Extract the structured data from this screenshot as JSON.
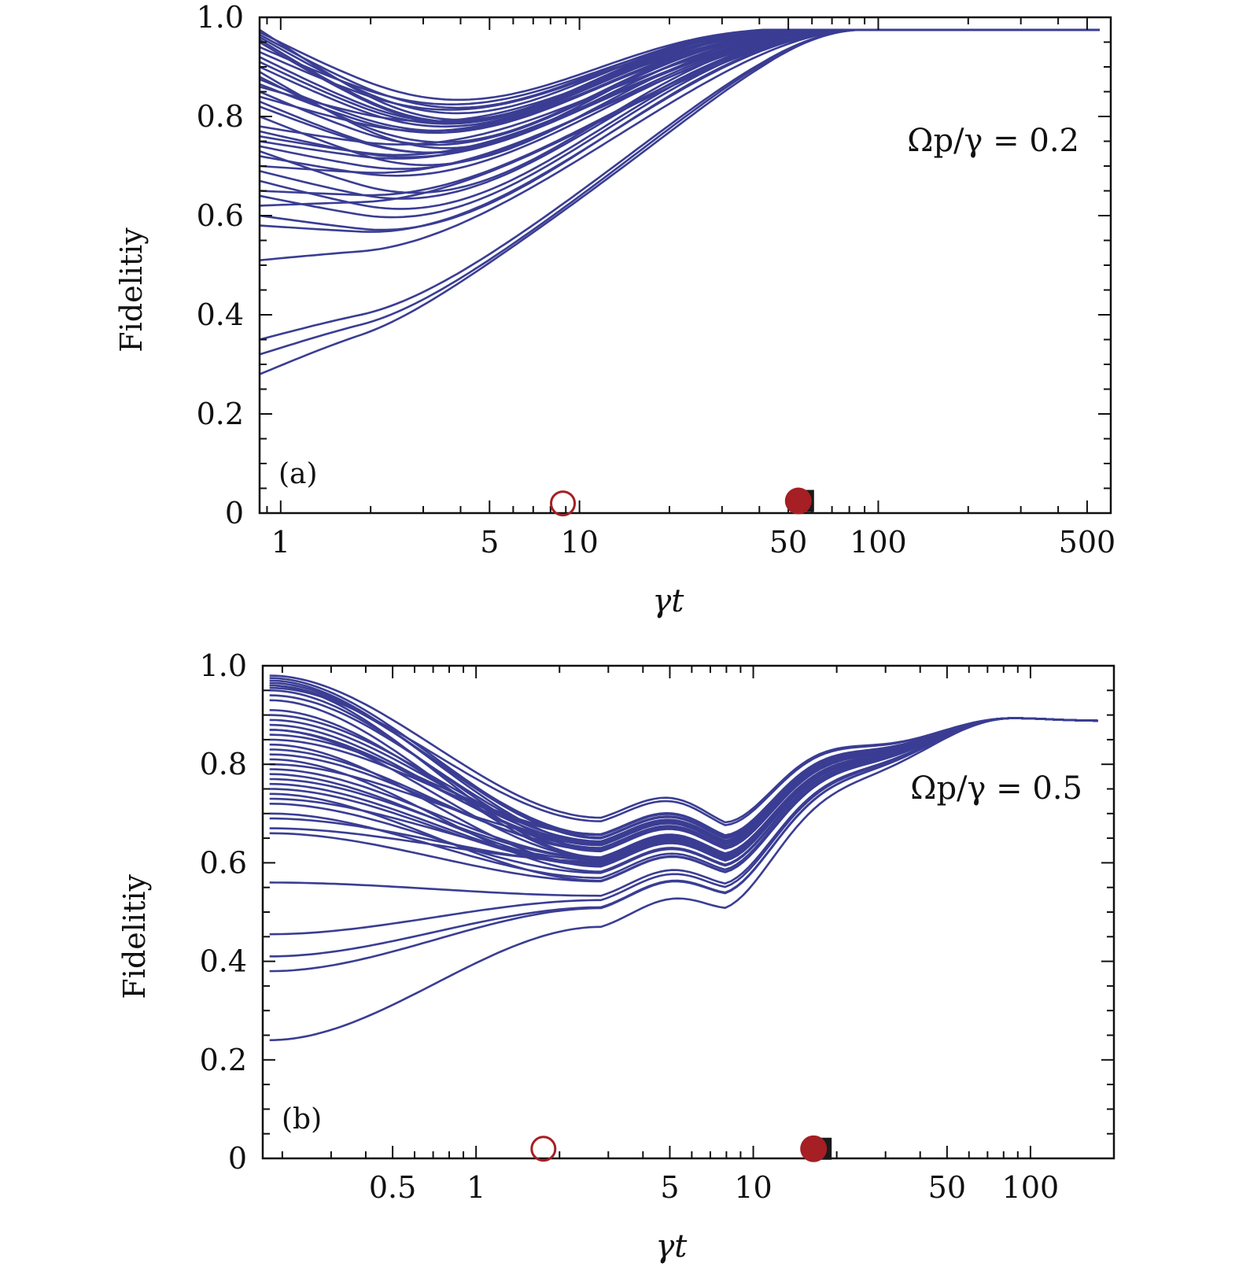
{
  "colors": {
    "curve": "#3a3d93",
    "marker": "#a51f24",
    "marker_square": "#1a1a1a",
    "axis": "#111111"
  },
  "chart_data": [
    {
      "type": "line",
      "panel_label": "(a)",
      "annotation": "Ωp/γ = 0.2",
      "xlabel": "γt",
      "ylabel": "Fidelitiy",
      "xscale": "log",
      "xlim": [
        0.85,
        600
      ],
      "ylim": [
        0,
        1.0
      ],
      "yticks": [
        0,
        0.2,
        0.4,
        0.6,
        0.8,
        1.0
      ],
      "ytick_labels": [
        "0",
        "0.2",
        "0.4",
        "0.6",
        "0.8",
        "1.0"
      ],
      "xticks": [
        1,
        5,
        10,
        50,
        100,
        500
      ],
      "xtick_labels": [
        "1",
        "5",
        "10",
        "50",
        "100",
        "500"
      ],
      "n_curves": 40,
      "x_start": 0.85,
      "x_end": 550,
      "final_value": 0.975,
      "initial_values": [
        0.975,
        0.97,
        0.965,
        0.96,
        0.95,
        0.94,
        0.93,
        0.92,
        0.91,
        0.9,
        0.89,
        0.875,
        0.865,
        0.85,
        0.84,
        0.83,
        0.82,
        0.8,
        0.78,
        0.77,
        0.76,
        0.75,
        0.73,
        0.72,
        0.7,
        0.69,
        0.65,
        0.64,
        0.62,
        0.6,
        0.58,
        0.51,
        0.35,
        0.32,
        0.28,
        0.67,
        0.74,
        0.86,
        0.88,
        0.955
      ],
      "markers": [
        {
          "kind": "open-circle",
          "x": 8.8,
          "y": 0.01
        },
        {
          "kind": "filled-square",
          "x": 56,
          "y": 0.015
        },
        {
          "kind": "filled-circle",
          "x": 54,
          "y": 0.015
        }
      ]
    },
    {
      "type": "line",
      "panel_label": "(b)",
      "annotation": "Ωp/γ = 0.5",
      "xlabel": "γt",
      "ylabel": "Fidelitiy",
      "xscale": "log",
      "xlim": [
        0.17,
        200
      ],
      "ylim": [
        0,
        1.0
      ],
      "yticks": [
        0,
        0.2,
        0.4,
        0.6,
        0.8,
        1.0
      ],
      "ytick_labels": [
        "0",
        "0.2",
        "0.4",
        "0.6",
        "0.8",
        "1.0"
      ],
      "xticks": [
        0.5,
        1,
        5,
        10,
        50,
        100
      ],
      "xtick_labels": [
        "0.5",
        "1",
        "5",
        "10",
        "50",
        "100"
      ],
      "n_curves": 40,
      "x_start": 0.18,
      "x_end": 175,
      "final_value": 0.89,
      "initial_values": [
        0.98,
        0.975,
        0.97,
        0.965,
        0.96,
        0.955,
        0.95,
        0.91,
        0.9,
        0.89,
        0.88,
        0.87,
        0.86,
        0.85,
        0.84,
        0.82,
        0.81,
        0.8,
        0.79,
        0.78,
        0.77,
        0.76,
        0.75,
        0.74,
        0.73,
        0.72,
        0.7,
        0.69,
        0.67,
        0.66,
        0.56,
        0.455,
        0.41,
        0.38,
        0.24,
        0.83,
        0.87,
        0.93,
        0.94,
        0.96
      ],
      "markers": [
        {
          "kind": "open-circle",
          "x": 1.75,
          "y": 0.01
        },
        {
          "kind": "filled-square",
          "x": 17.5,
          "y": 0.01
        },
        {
          "kind": "filled-circle",
          "x": 16.5,
          "y": 0.01
        }
      ]
    }
  ]
}
